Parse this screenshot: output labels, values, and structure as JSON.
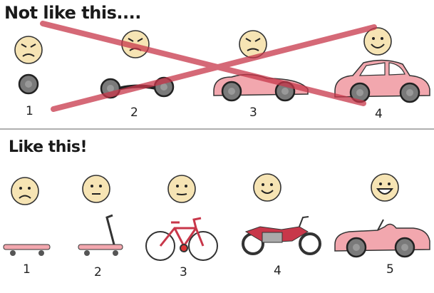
{
  "top": {
    "title": "Not like this....",
    "labels": [
      "1",
      "2",
      "3",
      "4"
    ]
  },
  "bottom": {
    "title": "Like this!",
    "labels": [
      "1",
      "2",
      "3",
      "4",
      "5"
    ]
  },
  "colors": {
    "face": "#f6e4b4",
    "wheel": "#7a7a7a",
    "car": "#f2a7ae",
    "cross": "#c8374a",
    "divider": "#b0b0b0"
  }
}
